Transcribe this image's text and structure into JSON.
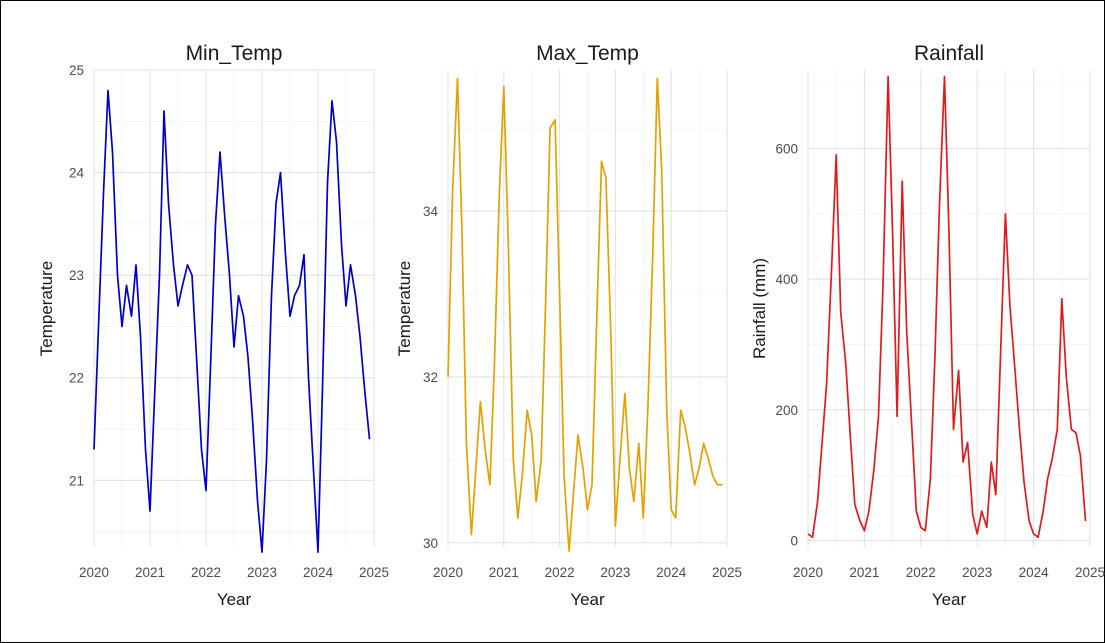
{
  "chart_data": [
    {
      "type": "line",
      "title": "Min_Temp",
      "xlabel": "Year",
      "ylabel": "Temperature",
      "color": "#0000cc",
      "xlim": [
        2020,
        2025
      ],
      "ylim": [
        20.35,
        25.0
      ],
      "x_ticks": [
        2020,
        2021,
        2022,
        2023,
        2024,
        2025
      ],
      "y_ticks": [
        21,
        22,
        23,
        24,
        25
      ],
      "grid": true,
      "x": [
        2020.0,
        2020.08,
        2020.17,
        2020.25,
        2020.33,
        2020.42,
        2020.5,
        2020.58,
        2020.67,
        2020.75,
        2020.83,
        2020.92,
        2021.0,
        2021.08,
        2021.17,
        2021.25,
        2021.33,
        2021.42,
        2021.5,
        2021.58,
        2021.67,
        2021.75,
        2021.83,
        2021.92,
        2022.0,
        2022.08,
        2022.17,
        2022.25,
        2022.33,
        2022.42,
        2022.5,
        2022.58,
        2022.67,
        2022.75,
        2022.83,
        2022.92,
        2023.0,
        2023.08,
        2023.17,
        2023.25,
        2023.33,
        2023.42,
        2023.5,
        2023.58,
        2023.67,
        2023.75,
        2023.83,
        2023.92,
        2024.0,
        2024.08,
        2024.17,
        2024.25,
        2024.33,
        2024.42,
        2024.5,
        2024.58,
        2024.67,
        2024.75,
        2024.83,
        2024.92
      ],
      "values": [
        21.3,
        22.5,
        23.8,
        24.8,
        24.2,
        23.0,
        22.5,
        22.9,
        22.6,
        23.1,
        22.4,
        21.3,
        20.7,
        21.8,
        23.0,
        24.6,
        23.7,
        23.1,
        22.7,
        22.9,
        23.1,
        23.0,
        22.2,
        21.3,
        20.9,
        22.1,
        23.5,
        24.2,
        23.6,
        23.0,
        22.3,
        22.8,
        22.6,
        22.2,
        21.6,
        20.8,
        20.3,
        21.2,
        22.8,
        23.7,
        24.0,
        23.2,
        22.6,
        22.8,
        22.9,
        23.2,
        22.0,
        21.1,
        20.3,
        21.9,
        23.9,
        24.7,
        24.3,
        23.3,
        22.7,
        23.1,
        22.8,
        22.4,
        21.9,
        21.4
      ]
    },
    {
      "type": "line",
      "title": "Max_Temp",
      "xlabel": "Year",
      "ylabel": "Temperature",
      "color": "#e6a100",
      "xlim": [
        2020,
        2025
      ],
      "ylim": [
        29.95,
        35.7
      ],
      "x_ticks": [
        2020,
        2021,
        2022,
        2023,
        2024,
        2025
      ],
      "y_ticks": [
        30,
        32,
        34
      ],
      "grid": true,
      "x": [
        2020.0,
        2020.08,
        2020.17,
        2020.25,
        2020.33,
        2020.42,
        2020.5,
        2020.58,
        2020.67,
        2020.75,
        2020.83,
        2020.92,
        2021.0,
        2021.08,
        2021.17,
        2021.25,
        2021.33,
        2021.42,
        2021.5,
        2021.58,
        2021.67,
        2021.75,
        2021.83,
        2021.92,
        2022.0,
        2022.08,
        2022.17,
        2022.25,
        2022.33,
        2022.42,
        2022.5,
        2022.58,
        2022.67,
        2022.75,
        2022.83,
        2022.92,
        2023.0,
        2023.08,
        2023.17,
        2023.25,
        2023.33,
        2023.42,
        2023.5,
        2023.58,
        2023.67,
        2023.75,
        2023.83,
        2023.92,
        2024.0,
        2024.08,
        2024.17,
        2024.25,
        2024.33,
        2024.42,
        2024.5,
        2024.58,
        2024.67,
        2024.75,
        2024.83,
        2024.92
      ],
      "values": [
        32.0,
        34.2,
        35.6,
        33.8,
        31.2,
        30.1,
        30.9,
        31.7,
        31.1,
        30.7,
        32.1,
        34.2,
        35.5,
        33.6,
        31.0,
        30.3,
        30.8,
        31.6,
        31.3,
        30.5,
        31.0,
        32.9,
        35.0,
        35.1,
        33.0,
        30.8,
        29.9,
        30.6,
        31.3,
        30.9,
        30.4,
        30.7,
        32.8,
        34.6,
        34.4,
        32.5,
        30.2,
        31.0,
        31.8,
        30.9,
        30.5,
        31.2,
        30.3,
        31.6,
        33.5,
        35.6,
        34.5,
        31.6,
        30.4,
        30.3,
        31.6,
        31.4,
        31.1,
        30.7,
        30.9,
        31.2,
        31.0,
        30.8,
        30.7,
        30.7
      ]
    },
    {
      "type": "line",
      "title": "Rainfall",
      "xlabel": "Year",
      "ylabel": "Rainfall (mm)",
      "color": "#e31a1c",
      "xlim": [
        2020,
        2025
      ],
      "ylim": [
        -10,
        720
      ],
      "x_ticks": [
        2020,
        2021,
        2022,
        2023,
        2024,
        2025
      ],
      "y_ticks": [
        0,
        200,
        400,
        600
      ],
      "grid": true,
      "x": [
        2020.0,
        2020.08,
        2020.17,
        2020.25,
        2020.33,
        2020.42,
        2020.5,
        2020.58,
        2020.67,
        2020.75,
        2020.83,
        2020.92,
        2021.0,
        2021.08,
        2021.17,
        2021.25,
        2021.33,
        2021.42,
        2021.5,
        2021.58,
        2021.67,
        2021.75,
        2021.83,
        2021.92,
        2022.0,
        2022.08,
        2022.17,
        2022.25,
        2022.33,
        2022.42,
        2022.5,
        2022.58,
        2022.67,
        2022.75,
        2022.83,
        2022.92,
        2023.0,
        2023.08,
        2023.17,
        2023.25,
        2023.33,
        2023.42,
        2023.5,
        2023.58,
        2023.67,
        2023.75,
        2023.83,
        2023.92,
        2024.0,
        2024.08,
        2024.17,
        2024.25,
        2024.33,
        2024.42,
        2024.5,
        2024.58,
        2024.67,
        2024.75,
        2024.83,
        2024.92
      ],
      "values": [
        10,
        5,
        60,
        150,
        240,
        420,
        590,
        350,
        270,
        160,
        55,
        30,
        15,
        45,
        110,
        190,
        390,
        710,
        470,
        190,
        550,
        320,
        190,
        45,
        20,
        15,
        95,
        280,
        510,
        710,
        470,
        170,
        260,
        120,
        150,
        40,
        10,
        45,
        20,
        120,
        70,
        300,
        500,
        360,
        260,
        170,
        90,
        30,
        10,
        5,
        45,
        95,
        125,
        170,
        370,
        250,
        170,
        165,
        130,
        30
      ]
    }
  ]
}
